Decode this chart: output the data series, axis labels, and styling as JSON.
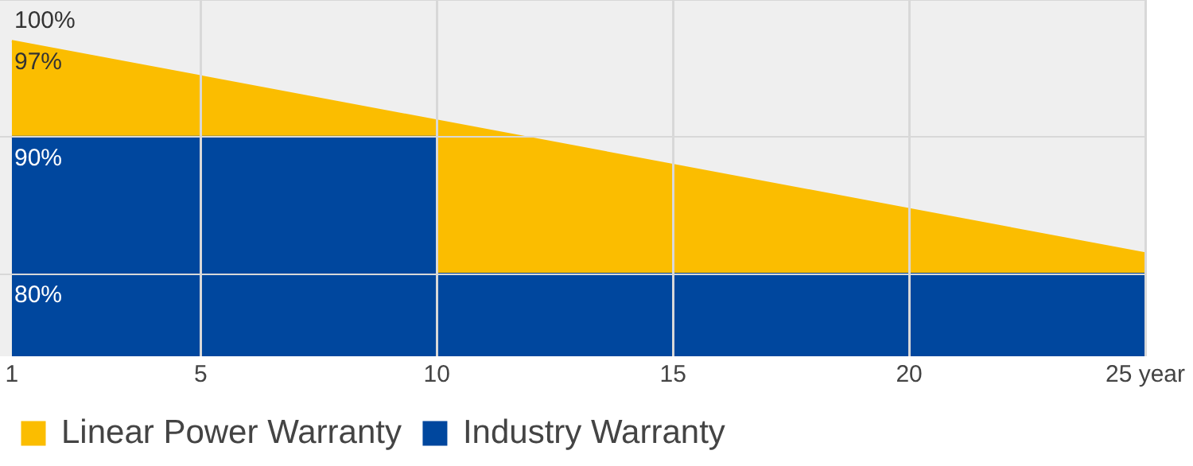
{
  "chart_data": {
    "type": "area",
    "xlim": [
      0.75,
      25
    ],
    "xticks": [
      1,
      5,
      10,
      15,
      20,
      {
        "value": 25,
        "label": "25 year"
      }
    ],
    "ylim": [
      74,
      100
    ],
    "yticks": [
      {
        "value": 100,
        "label": "100%"
      },
      {
        "value": 97,
        "label": "97%"
      },
      {
        "value": 90,
        "label": "90%"
      },
      {
        "value": 80,
        "label": "80%"
      }
    ],
    "series": [
      {
        "name": "Linear Power Warranty",
        "color": "#fbbd00",
        "x": [
          1,
          25
        ],
        "values": [
          97,
          81.5
        ]
      },
      {
        "name": "Industry Warranty",
        "color": "#00479e",
        "x": [
          1,
          10,
          10,
          25
        ],
        "values": [
          90,
          90,
          80,
          80
        ]
      }
    ],
    "grid": true,
    "legend": "bottom"
  }
}
